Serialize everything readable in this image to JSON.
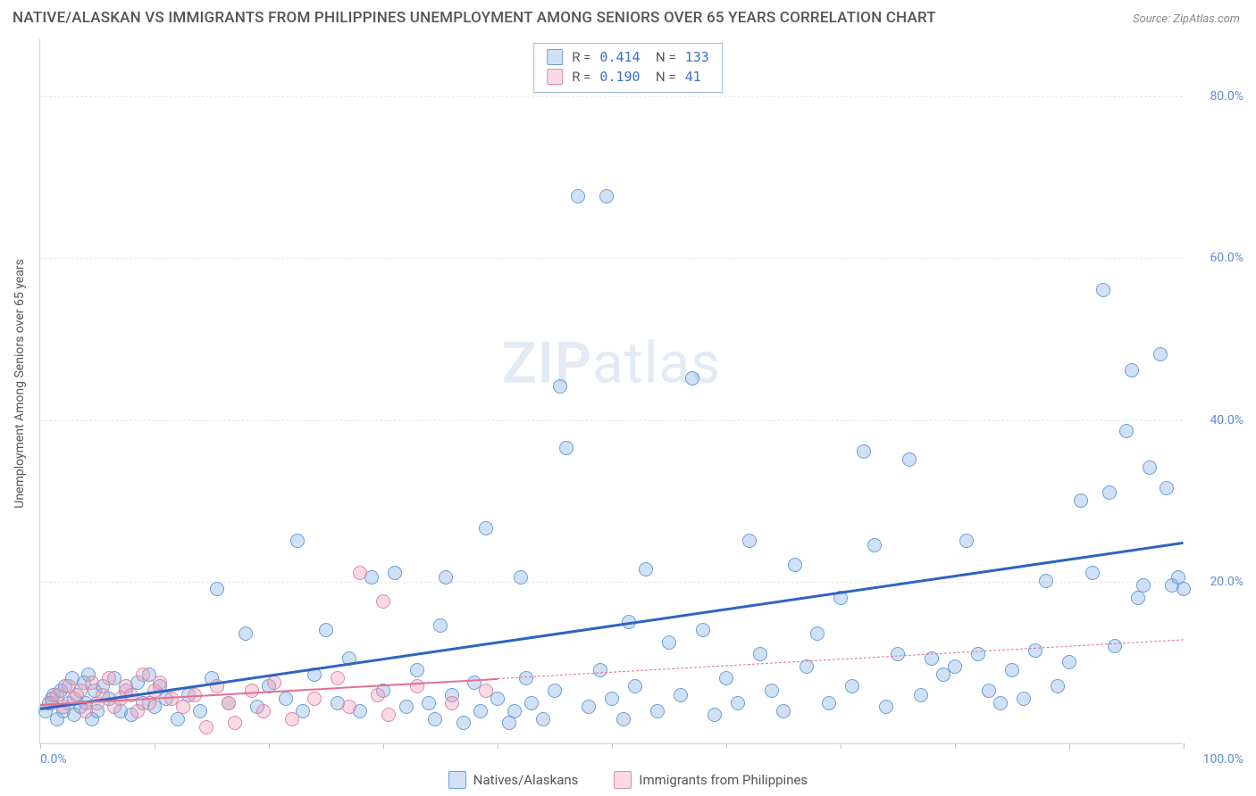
{
  "title": "NATIVE/ALASKAN VS IMMIGRANTS FROM PHILIPPINES UNEMPLOYMENT AMONG SENIORS OVER 65 YEARS CORRELATION CHART",
  "source": "Source: ZipAtlas.com",
  "watermark_a": "ZIP",
  "watermark_b": "atlas",
  "y_axis_label": "Unemployment Among Seniors over 65 years",
  "chart": {
    "type": "scatter",
    "xlim": [
      0,
      100
    ],
    "ylim": [
      0,
      87
    ],
    "x_tick_labels": [
      {
        "x": 0,
        "label": "0.0%"
      },
      {
        "x": 100,
        "label": "100.0%"
      }
    ],
    "x_minor_ticks": [
      0,
      10,
      20,
      30,
      40,
      50,
      60,
      70,
      80,
      90,
      100
    ],
    "y_grid": [
      {
        "y": 20,
        "label": "20.0%"
      },
      {
        "y": 40,
        "label": "40.0%"
      },
      {
        "y": 60,
        "label": "60.0%"
      },
      {
        "y": 80,
        "label": "80.0%"
      }
    ],
    "background_color": "#ffffff",
    "grid_color": "#e5e5e5",
    "marker_radius": 8,
    "marker_stroke_width": 1.2,
    "series": [
      {
        "key": "natives",
        "label": "Natives/Alaskans",
        "fill": "rgba(120,170,225,0.35)",
        "stroke": "#6a9fd6",
        "R": "0.414",
        "N": "133",
        "trend": {
          "x1": 0,
          "y1": 4.5,
          "x2": 100,
          "y2": 25.0,
          "color": "#2f63c2",
          "width": 3,
          "dash": "none"
        },
        "trend_ext": null,
        "points": [
          [
            0.5,
            4.0
          ],
          [
            0.8,
            5.0
          ],
          [
            1.0,
            5.5
          ],
          [
            1.2,
            6.0
          ],
          [
            1.5,
            3.0
          ],
          [
            1.8,
            6.5
          ],
          [
            2.0,
            4.0
          ],
          [
            2.2,
            7.0
          ],
          [
            2.5,
            5.0
          ],
          [
            2.8,
            8.0
          ],
          [
            3.0,
            3.5
          ],
          [
            3.2,
            6.0
          ],
          [
            3.5,
            4.5
          ],
          [
            3.8,
            7.5
          ],
          [
            4.0,
            5.0
          ],
          [
            4.2,
            8.5
          ],
          [
            4.5,
            3.0
          ],
          [
            4.8,
            6.5
          ],
          [
            5.0,
            4.0
          ],
          [
            5.5,
            7.0
          ],
          [
            6.0,
            5.5
          ],
          [
            6.5,
            8.0
          ],
          [
            7.0,
            4.0
          ],
          [
            7.5,
            6.5
          ],
          [
            8.0,
            3.5
          ],
          [
            8.5,
            7.5
          ],
          [
            9.0,
            5.0
          ],
          [
            9.5,
            8.5
          ],
          [
            10.0,
            4.5
          ],
          [
            10.5,
            7.0
          ],
          [
            11.0,
            5.5
          ],
          [
            12.0,
            3.0
          ],
          [
            13.0,
            6.0
          ],
          [
            14.0,
            4.0
          ],
          [
            15.0,
            8.0
          ],
          [
            15.5,
            19.0
          ],
          [
            16.5,
            5.0
          ],
          [
            18.0,
            13.5
          ],
          [
            19.0,
            4.5
          ],
          [
            20.0,
            7.0
          ],
          [
            21.5,
            5.5
          ],
          [
            22.5,
            25.0
          ],
          [
            23.0,
            4.0
          ],
          [
            24.0,
            8.5
          ],
          [
            25.0,
            14.0
          ],
          [
            26.0,
            5.0
          ],
          [
            27.0,
            10.5
          ],
          [
            28.0,
            4.0
          ],
          [
            29.0,
            20.5
          ],
          [
            30.0,
            6.5
          ],
          [
            31.0,
            21.0
          ],
          [
            32.0,
            4.5
          ],
          [
            33.0,
            9.0
          ],
          [
            34.0,
            5.0
          ],
          [
            34.5,
            3.0
          ],
          [
            35.0,
            14.5
          ],
          [
            35.5,
            20.5
          ],
          [
            36.0,
            6.0
          ],
          [
            37.0,
            2.5
          ],
          [
            38.0,
            7.5
          ],
          [
            38.5,
            4.0
          ],
          [
            39.0,
            26.5
          ],
          [
            40.0,
            5.5
          ],
          [
            41.0,
            2.5
          ],
          [
            41.5,
            4.0
          ],
          [
            42.0,
            20.5
          ],
          [
            42.5,
            8.0
          ],
          [
            43.0,
            5.0
          ],
          [
            44.0,
            3.0
          ],
          [
            45.0,
            6.5
          ],
          [
            45.5,
            44.0
          ],
          [
            46.0,
            36.5
          ],
          [
            47.0,
            67.5
          ],
          [
            48.0,
            4.5
          ],
          [
            49.0,
            9.0
          ],
          [
            49.5,
            67.5
          ],
          [
            50.0,
            5.5
          ],
          [
            51.0,
            3.0
          ],
          [
            51.5,
            15.0
          ],
          [
            52.0,
            7.0
          ],
          [
            53.0,
            21.5
          ],
          [
            54.0,
            4.0
          ],
          [
            55.0,
            12.5
          ],
          [
            56.0,
            6.0
          ],
          [
            57.0,
            45.0
          ],
          [
            58.0,
            14.0
          ],
          [
            59.0,
            3.5
          ],
          [
            60.0,
            8.0
          ],
          [
            61.0,
            5.0
          ],
          [
            62.0,
            25.0
          ],
          [
            63.0,
            11.0
          ],
          [
            64.0,
            6.5
          ],
          [
            65.0,
            4.0
          ],
          [
            66.0,
            22.0
          ],
          [
            67.0,
            9.5
          ],
          [
            68.0,
            13.5
          ],
          [
            69.0,
            5.0
          ],
          [
            70.0,
            18.0
          ],
          [
            71.0,
            7.0
          ],
          [
            72.0,
            36.0
          ],
          [
            73.0,
            24.5
          ],
          [
            74.0,
            4.5
          ],
          [
            75.0,
            11.0
          ],
          [
            76.0,
            35.0
          ],
          [
            77.0,
            6.0
          ],
          [
            78.0,
            10.5
          ],
          [
            79.0,
            8.5
          ],
          [
            80.0,
            9.5
          ],
          [
            81.0,
            25.0
          ],
          [
            82.0,
            11.0
          ],
          [
            83.0,
            6.5
          ],
          [
            84.0,
            5.0
          ],
          [
            85.0,
            9.0
          ],
          [
            86.0,
            5.5
          ],
          [
            87.0,
            11.5
          ],
          [
            88.0,
            20.0
          ],
          [
            89.0,
            7.0
          ],
          [
            90.0,
            10.0
          ],
          [
            91.0,
            30.0
          ],
          [
            92.0,
            21.0
          ],
          [
            93.0,
            56.0
          ],
          [
            93.5,
            31.0
          ],
          [
            94.0,
            12.0
          ],
          [
            95.0,
            38.5
          ],
          [
            95.5,
            46.0
          ],
          [
            96.0,
            18.0
          ],
          [
            96.5,
            19.5
          ],
          [
            97.0,
            34.0
          ],
          [
            98.0,
            48.0
          ],
          [
            98.5,
            31.5
          ],
          [
            99.0,
            19.5
          ],
          [
            99.5,
            20.5
          ],
          [
            100.0,
            19.0
          ]
        ]
      },
      {
        "key": "immigrants",
        "label": "Immigrants from Philippines",
        "fill": "rgba(240,160,185,0.40)",
        "stroke": "#d98aa6",
        "R": "0.190",
        "N": "  41",
        "trend": {
          "x1": 0,
          "y1": 5.0,
          "x2": 40,
          "y2": 8.2,
          "color": "#e36f93",
          "width": 2.5,
          "dash": "none"
        },
        "trend_ext": {
          "x1": 40,
          "y1": 8.2,
          "x2": 100,
          "y2": 13.0,
          "color": "#e36f93",
          "width": 1.2,
          "dash": "6,5"
        },
        "points": [
          [
            1.0,
            5.0
          ],
          [
            1.5,
            6.0
          ],
          [
            2.0,
            4.5
          ],
          [
            2.5,
            7.0
          ],
          [
            3.0,
            5.5
          ],
          [
            3.5,
            6.5
          ],
          [
            4.0,
            4.0
          ],
          [
            4.5,
            7.5
          ],
          [
            5.0,
            5.0
          ],
          [
            5.5,
            6.0
          ],
          [
            6.0,
            8.0
          ],
          [
            6.5,
            4.5
          ],
          [
            7.0,
            5.5
          ],
          [
            7.5,
            7.0
          ],
          [
            8.0,
            6.0
          ],
          [
            8.5,
            4.0
          ],
          [
            9.0,
            8.5
          ],
          [
            9.5,
            5.0
          ],
          [
            10.0,
            6.5
          ],
          [
            10.5,
            7.5
          ],
          [
            11.5,
            5.5
          ],
          [
            12.5,
            4.5
          ],
          [
            13.5,
            6.0
          ],
          [
            14.5,
            2.0
          ],
          [
            15.5,
            7.0
          ],
          [
            16.5,
            5.0
          ],
          [
            17.0,
            2.5
          ],
          [
            18.5,
            6.5
          ],
          [
            19.5,
            4.0
          ],
          [
            20.5,
            7.5
          ],
          [
            22.0,
            3.0
          ],
          [
            24.0,
            5.5
          ],
          [
            26.0,
            8.0
          ],
          [
            27.0,
            4.5
          ],
          [
            28.0,
            21.0
          ],
          [
            29.5,
            6.0
          ],
          [
            30.0,
            17.5
          ],
          [
            30.5,
            3.5
          ],
          [
            33.0,
            7.0
          ],
          [
            36.0,
            5.0
          ],
          [
            39.0,
            6.5
          ]
        ]
      }
    ]
  },
  "legend_top_rows": [
    {
      "swatch_fill": "rgba(120,170,225,0.35)",
      "swatch_stroke": "#6a9fd6",
      "r": "0.414",
      "n": "133"
    },
    {
      "swatch_fill": "rgba(240,160,185,0.40)",
      "swatch_stroke": "#d98aa6",
      "r": "0.190",
      "n": "  41"
    }
  ],
  "legend_bottom": [
    {
      "swatch_fill": "rgba(120,170,225,0.35)",
      "swatch_stroke": "#6a9fd6",
      "label": "Natives/Alaskans"
    },
    {
      "swatch_fill": "rgba(240,160,185,0.40)",
      "swatch_stroke": "#d98aa6",
      "label": "Immigrants from Philippines"
    }
  ]
}
